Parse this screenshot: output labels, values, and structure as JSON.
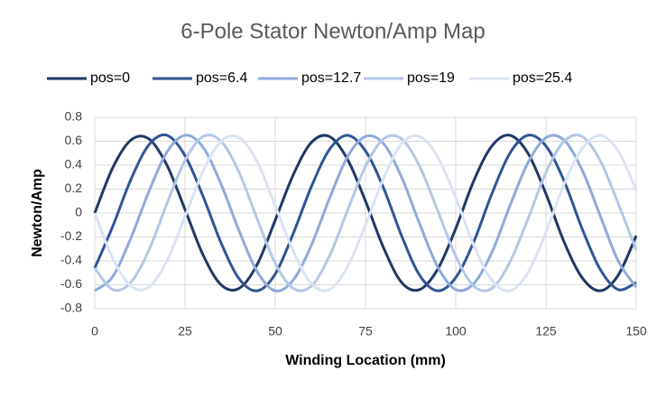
{
  "chart_data": {
    "type": "line",
    "title": "6-Pole Stator Newton/Amp Map",
    "x_label": "Winding Location (mm)",
    "y_label": "Newton/Amp",
    "x": [
      0,
      5,
      10,
      15,
      20,
      25,
      30,
      35,
      40,
      45,
      50,
      55,
      60,
      65,
      70,
      75,
      80,
      85,
      90,
      95,
      100,
      105,
      110,
      115,
      120,
      125,
      130,
      135,
      140,
      145,
      150
    ],
    "series": [
      {
        "name": "pos=0",
        "color": "#203864",
        "values": [
          0,
          0.38,
          0.61,
          0.62,
          0.4,
          0.03,
          -0.35,
          -0.6,
          -0.63,
          -0.43,
          -0.06,
          0.32,
          0.59,
          0.64,
          0.45,
          0.1,
          -0.29,
          -0.58,
          -0.64,
          -0.47,
          -0.13,
          0.27,
          0.56,
          0.65,
          0.5,
          0.16,
          -0.24,
          -0.54,
          -0.65,
          -0.52,
          -0.19
        ]
      },
      {
        "name": "pos=6.4",
        "color": "#2f5597",
        "values": [
          -0.46,
          -0.11,
          0.28,
          0.57,
          0.65,
          0.48,
          0.14,
          -0.25,
          -0.55,
          -0.65,
          -0.51,
          -0.17,
          0.22,
          0.53,
          0.65,
          0.52,
          0.21,
          -0.19,
          -0.52,
          -0.65,
          -0.54,
          -0.24,
          0.16,
          0.5,
          0.65,
          0.56,
          0.27,
          -0.13,
          -0.47,
          -0.64,
          -0.58
        ]
      },
      {
        "name": "pos=12.7",
        "color": "#8faadc",
        "values": [
          -0.65,
          -0.53,
          -0.21,
          0.18,
          0.51,
          0.65,
          0.55,
          0.24,
          -0.15,
          -0.49,
          -0.65,
          -0.56,
          -0.27,
          0.12,
          0.47,
          0.64,
          0.58,
          0.3,
          -0.09,
          -0.45,
          -0.64,
          -0.59,
          -0.33,
          0.06,
          0.42,
          0.63,
          0.61,
          0.36,
          -0.02,
          -0.4,
          -0.62
        ]
      },
      {
        "name": "pos=19",
        "color": "#b4c7e7",
        "values": [
          -0.46,
          -0.64,
          -0.58,
          -0.31,
          0.08,
          0.44,
          0.64,
          0.6,
          0.34,
          -0.05,
          -0.42,
          -0.63,
          -0.61,
          -0.36,
          0.02,
          0.39,
          0.62,
          0.62,
          0.39,
          0.02,
          -0.36,
          -0.61,
          -0.63,
          -0.41,
          -0.05,
          0.34,
          0.6,
          0.64,
          0.44,
          0.08,
          -0.31
        ]
      },
      {
        "name": "pos=25.4",
        "color": "#dae3f3",
        "values": [
          0,
          -0.38,
          -0.61,
          -0.62,
          -0.4,
          -0.03,
          0.35,
          0.6,
          0.63,
          0.43,
          0.06,
          -0.32,
          -0.59,
          -0.64,
          -0.45,
          -0.1,
          0.29,
          0.58,
          0.64,
          0.47,
          0.13,
          -0.27,
          -0.56,
          -0.65,
          -0.5,
          -0.16,
          0.24,
          0.54,
          0.65,
          0.52,
          0.19
        ]
      }
    ],
    "xlim": [
      0,
      150
    ],
    "xticks": [
      0,
      25,
      50,
      75,
      100,
      125,
      150
    ],
    "ylim": [
      -0.8,
      0.8
    ],
    "yticks": [
      -0.8,
      -0.6,
      -0.4,
      -0.2,
      0,
      0.2,
      0.4,
      0.6,
      0.8
    ],
    "grid": true,
    "legend": "top"
  }
}
